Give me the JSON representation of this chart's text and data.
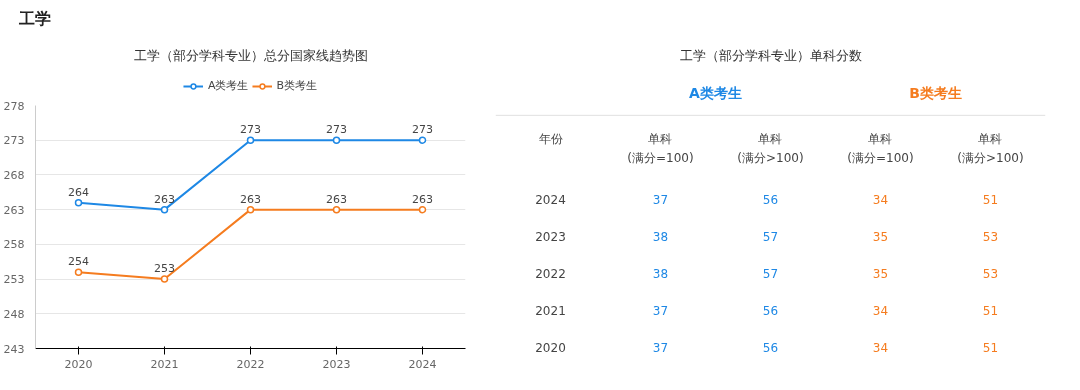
{
  "chart_data": [
    {
      "type": "line",
      "title": "工学（部分学科专业）总分国家线趋势图",
      "annotations": [
        "工学"
      ],
      "categories": [
        "2020",
        "2021",
        "2022",
        "2023",
        "2024"
      ],
      "series": [
        {
          "name": "A类考生",
          "color": "#1e88e5",
          "values": [
            264,
            263,
            273,
            273,
            273
          ]
        },
        {
          "name": "B类考生",
          "color": "#f57c1f",
          "values": [
            254,
            253,
            263,
            263,
            263
          ]
        }
      ],
      "ylim": [
        243,
        278
      ],
      "yticks": [
        243,
        248,
        253,
        258,
        263,
        268,
        273,
        278
      ],
      "grid": "y",
      "legend": "top",
      "marker": "circle",
      "data_labels": true
    },
    {
      "type": "heatmap",
      "title": "工学（部分学科专业）单科分数",
      "ylabel": "年份",
      "annotations": [
        {
          "text": "A类考生"
        },
        {
          "text": "B类考生"
        }
      ],
      "categories": [
        "单科\n(满分=100)",
        "单科\n(满分>100)",
        "单科\n(满分=100)",
        "单科\n(满分>100)"
      ],
      "colors": [
        "#1e88e5",
        "#1e88e5",
        "#f57c1f",
        "#f57c1f"
      ],
      "y_categories": [
        "2024",
        "2023",
        "2022",
        "2021",
        "2020"
      ],
      "cells": [
        [
          37,
          56,
          34,
          51
        ],
        [
          38,
          57,
          35,
          53
        ],
        [
          38,
          57,
          35,
          53
        ],
        [
          37,
          56,
          34,
          51
        ],
        [
          37,
          56,
          34,
          51
        ]
      ],
      "data_labels": true
    }
  ]
}
